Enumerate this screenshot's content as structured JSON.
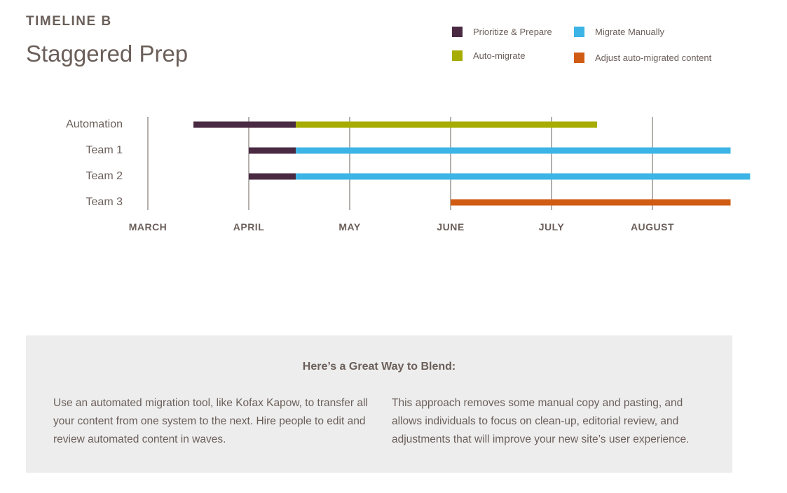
{
  "header": {
    "eyebrow": "TIMELINE B",
    "title": "Staggered Prep"
  },
  "legend": [
    {
      "label": "Prioritize & Prepare",
      "color": "#4a2a43"
    },
    {
      "label": "Migrate Manually",
      "color": "#3cb4e5"
    },
    {
      "label": "Auto-migrate",
      "color": "#a6ac00"
    },
    {
      "label": "Adjust auto-migrated content",
      "color": "#d05c14"
    }
  ],
  "chart_data": {
    "type": "gantt",
    "title": "Staggered Prep",
    "months": [
      "MARCH",
      "APRIL",
      "MAY",
      "JUNE",
      "JULY",
      "AUGUST"
    ],
    "rows": [
      "Automation",
      "Team 1",
      "Team 2",
      "Team 3"
    ],
    "series": [
      {
        "name": "Prioritize & Prepare",
        "color": "#4a2a43",
        "segments": [
          {
            "row": "Automation",
            "start": "Mar 15",
            "end": "Apr 15"
          },
          {
            "row": "Team 1",
            "start": "Apr 1",
            "end": "Apr 15"
          },
          {
            "row": "Team 2",
            "start": "Apr 1",
            "end": "Apr 15"
          }
        ]
      },
      {
        "name": "Auto-migrate",
        "color": "#a6ac00",
        "segments": [
          {
            "row": "Automation",
            "start": "Apr 15",
            "end": "Jul 15"
          }
        ]
      },
      {
        "name": "Migrate Manually",
        "color": "#3cb4e5",
        "segments": [
          {
            "row": "Team 1",
            "start": "Apr 15",
            "end": "Aug 25"
          },
          {
            "row": "Team 2",
            "start": "Apr 15",
            "end": "Aug 31"
          }
        ]
      },
      {
        "name": "Adjust auto-migrated content",
        "color": "#d05c14",
        "segments": [
          {
            "row": "Team 3",
            "start": "Jun 1",
            "end": "Aug 25"
          }
        ]
      }
    ]
  },
  "tip": {
    "heading": "Here’s a Great Way to Blend:",
    "left": "Use an automated migration tool, like Kofax Kapow, to transfer all your content from one system to the next. Hire people to edit and review automated content in waves.",
    "right": "This approach removes some manual copy and pasting, and allows individuals to focus on clean-up, editorial review, and adjustments that will improve your new site’s user experience."
  }
}
